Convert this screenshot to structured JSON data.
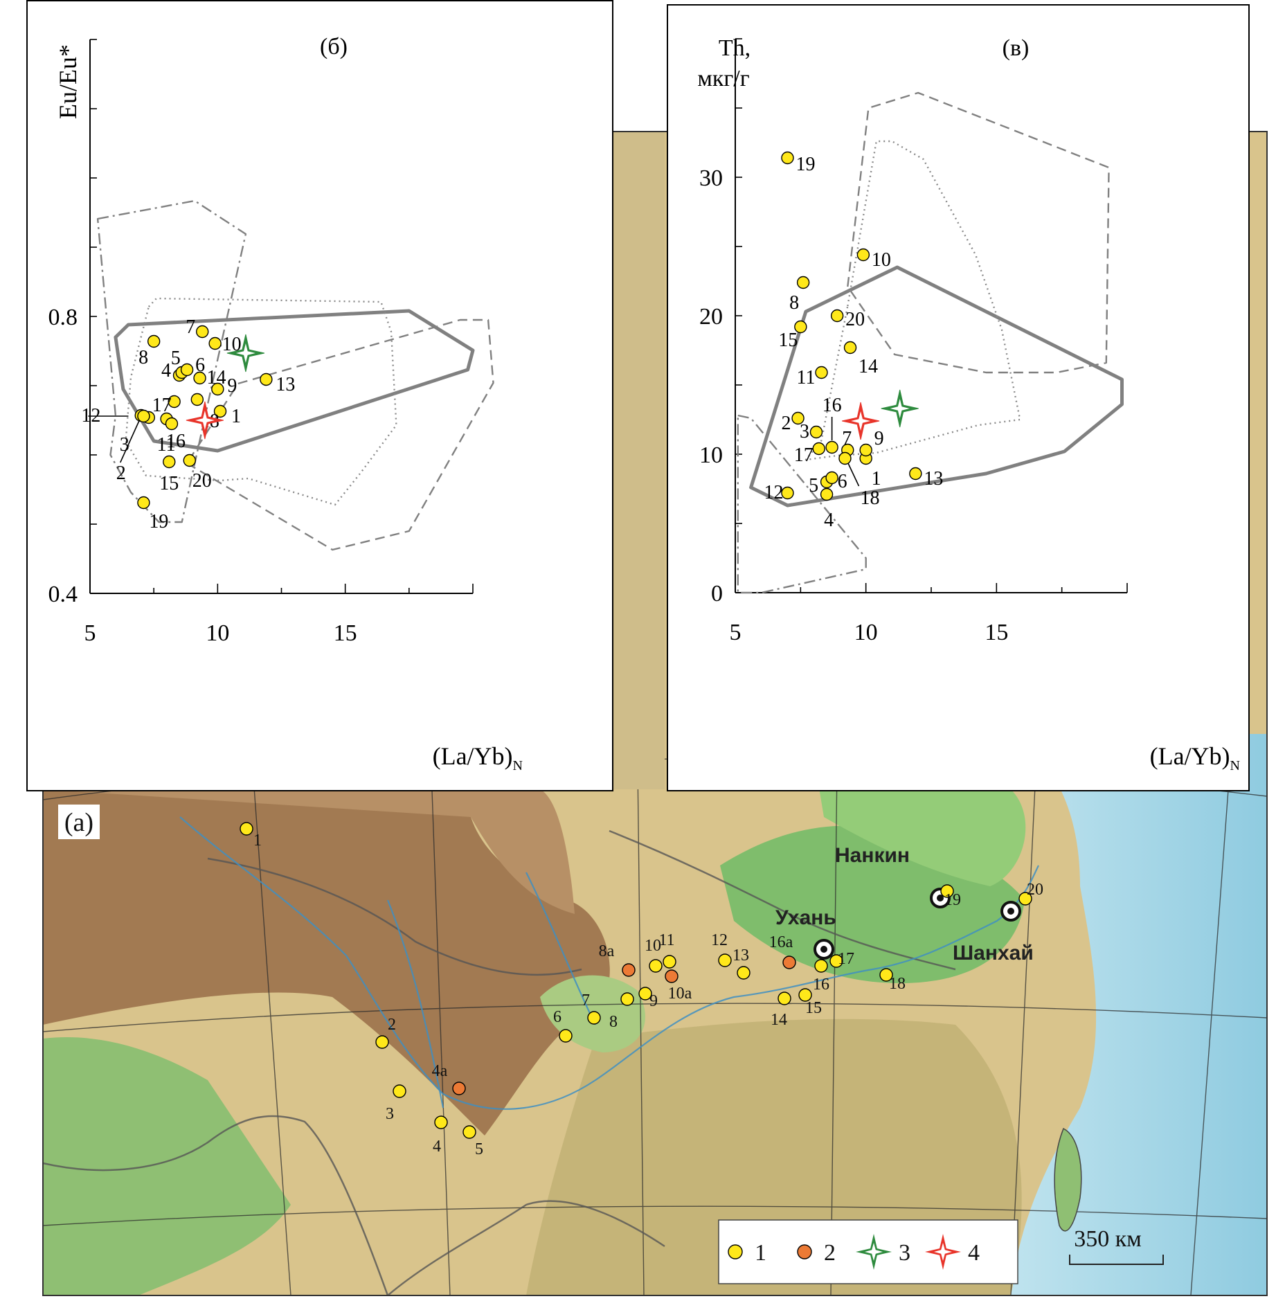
{
  "chart_data": [
    {
      "type": "scatter",
      "panel_label": "(б)",
      "xlabel": "(La/Yb)",
      "xlabel_sub": "N",
      "ylabel": "Eu/Eu*",
      "xlim": [
        5,
        20
      ],
      "ylim": [
        0.4,
        1.2
      ],
      "x_ticks": [
        "5",
        "10",
        "15"
      ],
      "y_ticks": [
        "0.4",
        "0.8"
      ],
      "points": [
        {
          "label": "1",
          "x": 10.1,
          "y": 0.663
        },
        {
          "label": "2",
          "x": 7.0,
          "y": 0.657
        },
        {
          "label": "3",
          "x": 7.3,
          "y": 0.654
        },
        {
          "label": "4",
          "x": 8.5,
          "y": 0.715
        },
        {
          "label": "5",
          "x": 8.6,
          "y": 0.719
        },
        {
          "label": "6",
          "x": 8.8,
          "y": 0.723
        },
        {
          "label": "7",
          "x": 9.4,
          "y": 0.778
        },
        {
          "label": "8",
          "x": 7.5,
          "y": 0.764
        },
        {
          "label": "9",
          "x": 10.0,
          "y": 0.695
        },
        {
          "label": "10",
          "x": 9.9,
          "y": 0.761
        },
        {
          "label": "11",
          "x": 8.0,
          "y": 0.652
        },
        {
          "label": "12",
          "x": 7.1,
          "y": 0.656
        },
        {
          "label": "13",
          "x": 11.9,
          "y": 0.709
        },
        {
          "label": "14",
          "x": 9.3,
          "y": 0.711
        },
        {
          "label": "15",
          "x": 8.1,
          "y": 0.59
        },
        {
          "label": "16",
          "x": 8.2,
          "y": 0.645
        },
        {
          "label": "17",
          "x": 8.3,
          "y": 0.677
        },
        {
          "label": "18",
          "x": 9.2,
          "y": 0.68
        },
        {
          "label": "19",
          "x": 7.1,
          "y": 0.531
        },
        {
          "label": "20",
          "x": 8.9,
          "y": 0.592
        }
      ],
      "markers": [
        {
          "legend": "3",
          "x": 11.1,
          "y": 0.747,
          "color": "#2e8b3e"
        },
        {
          "legend": "4",
          "x": 9.5,
          "y": 0.65,
          "color": "#e8342a"
        }
      ],
      "fields": [
        {
          "style": "solid",
          "vertices": [
            [
              6.0,
              0.77
            ],
            [
              6.5,
              0.788
            ],
            [
              17.5,
              0.808
            ],
            [
              20.0,
              0.751
            ],
            [
              19.8,
              0.723
            ],
            [
              10.0,
              0.606
            ],
            [
              7.5,
              0.62
            ],
            [
              6.3,
              0.695
            ]
          ]
        },
        {
          "style": "dash",
          "vertices": [
            [
              8.8,
              0.588
            ],
            [
              14.5,
              0.463
            ],
            [
              17.5,
              0.49
            ],
            [
              20.8,
              0.704
            ],
            [
              20.6,
              0.795
            ],
            [
              19.5,
              0.795
            ],
            [
              10.8,
              0.703
            ]
          ]
        },
        {
          "style": "dot",
          "vertices": [
            [
              7.3,
              0.814
            ],
            [
              7.6,
              0.826
            ],
            [
              16.4,
              0.821
            ],
            [
              16.8,
              0.778
            ],
            [
              17.0,
              0.643
            ],
            [
              15.6,
              0.574
            ],
            [
              14.6,
              0.528
            ],
            [
              11.2,
              0.566
            ],
            [
              10.1,
              0.563
            ],
            [
              7.2,
              0.57
            ],
            [
              6.4,
              0.62
            ],
            [
              6.6,
              0.712
            ]
          ]
        },
        {
          "style": "dashdot",
          "vertices": [
            [
              5.3,
              0.941
            ],
            [
              9.1,
              0.967
            ],
            [
              11.1,
              0.919
            ],
            [
              9.8,
              0.705
            ],
            [
              8.6,
              0.503
            ],
            [
              7.7,
              0.503
            ],
            [
              6.6,
              0.546
            ],
            [
              5.8,
              0.6
            ],
            [
              6.0,
              0.657
            ]
          ]
        }
      ]
    },
    {
      "type": "scatter",
      "panel_label": "(в)",
      "xlabel": "(La/Yb)",
      "xlabel_sub": "N",
      "ylabel": "Th,",
      "ylabel2": "мкг/г",
      "xlim": [
        5,
        20
      ],
      "ylim": [
        0,
        40
      ],
      "x_ticks": [
        "5",
        "10",
        "15"
      ],
      "y_ticks": [
        "0",
        "10",
        "20",
        "30"
      ],
      "points": [
        {
          "label": "1",
          "x": 10.0,
          "y": 9.7
        },
        {
          "label": "2",
          "x": 7.4,
          "y": 12.6
        },
        {
          "label": "3",
          "x": 8.1,
          "y": 11.6
        },
        {
          "label": "4",
          "x": 8.5,
          "y": 7.1
        },
        {
          "label": "5",
          "x": 8.5,
          "y": 8.0
        },
        {
          "label": "6",
          "x": 8.7,
          "y": 8.3
        },
        {
          "label": "7",
          "x": 9.3,
          "y": 10.3
        },
        {
          "label": "8",
          "x": 7.6,
          "y": 22.4
        },
        {
          "label": "9",
          "x": 10.0,
          "y": 10.3
        },
        {
          "label": "10",
          "x": 9.9,
          "y": 24.4
        },
        {
          "label": "11",
          "x": 8.3,
          "y": 15.9
        },
        {
          "label": "12",
          "x": 7.0,
          "y": 7.2
        },
        {
          "label": "13",
          "x": 11.9,
          "y": 8.6
        },
        {
          "label": "14",
          "x": 9.4,
          "y": 17.7
        },
        {
          "label": "15",
          "x": 7.5,
          "y": 19.2
        },
        {
          "label": "16",
          "x": 8.7,
          "y": 10.5
        },
        {
          "label": "17",
          "x": 8.2,
          "y": 10.4
        },
        {
          "label": "18",
          "x": 9.2,
          "y": 9.7
        },
        {
          "label": "19",
          "x": 7.0,
          "y": 31.4
        },
        {
          "label": "20",
          "x": 8.9,
          "y": 20.0
        }
      ],
      "markers": [
        {
          "legend": "3",
          "x": 11.3,
          "y": 13.3,
          "color": "#2e8b3e"
        },
        {
          "legend": "4",
          "x": 9.8,
          "y": 12.4,
          "color": "#e8342a"
        }
      ],
      "fields": [
        {
          "style": "solid",
          "vertices": [
            [
              7.7,
              20.3
            ],
            [
              11.2,
              23.5
            ],
            [
              19.8,
              15.4
            ],
            [
              19.8,
              13.6
            ],
            [
              17.6,
              10.2
            ],
            [
              14.6,
              8.6
            ],
            [
              7.0,
              6.3
            ],
            [
              5.6,
              7.6
            ]
          ]
        },
        {
          "style": "dash",
          "vertices": [
            [
              9.3,
              22.1
            ],
            [
              10.1,
              35.0
            ],
            [
              12.0,
              36.1
            ],
            [
              19.3,
              30.7
            ],
            [
              19.2,
              16.6
            ],
            [
              17.3,
              15.9
            ],
            [
              14.6,
              15.9
            ],
            [
              11.1,
              17.2
            ]
          ]
        },
        {
          "style": "dot",
          "vertices": [
            [
              9.3,
              20.7
            ],
            [
              10.4,
              32.6
            ],
            [
              11.0,
              32.6
            ],
            [
              12.2,
              31.3
            ],
            [
              14.2,
              24.4
            ],
            [
              15.2,
              19.0
            ],
            [
              15.9,
              12.5
            ],
            [
              14.3,
              12.1
            ],
            [
              10.4,
              10.1
            ],
            [
              8.9,
              9.9
            ],
            [
              7.7,
              9.6
            ],
            [
              8.3,
              11.0
            ]
          ]
        },
        {
          "style": "dashdot",
          "vertices": [
            [
              5.1,
              12.8
            ],
            [
              5.6,
              12.6
            ],
            [
              10.0,
              2.5
            ],
            [
              10.0,
              1.7
            ],
            [
              6.0,
              0.0
            ],
            [
              5.1,
              0.0
            ]
          ]
        }
      ]
    }
  ],
  "map": {
    "panel_label": "(a)",
    "cities": [
      {
        "name": "Нанкин"
      },
      {
        "name": "Ухань"
      },
      {
        "name": "Шанхай"
      }
    ],
    "sites": [
      {
        "label": "1",
        "type": 1
      },
      {
        "label": "2",
        "type": 1
      },
      {
        "label": "3",
        "type": 1
      },
      {
        "label": "4",
        "type": 1
      },
      {
        "label": "4a",
        "type": 2
      },
      {
        "label": "5",
        "type": 1
      },
      {
        "label": "6",
        "type": 1
      },
      {
        "label": "7",
        "type": 1
      },
      {
        "label": "8",
        "type": 1
      },
      {
        "label": "8a",
        "type": 2
      },
      {
        "label": "9",
        "type": 1
      },
      {
        "label": "10",
        "type": 1
      },
      {
        "label": "10a",
        "type": 2
      },
      {
        "label": "11",
        "type": 1
      },
      {
        "label": "12",
        "type": 1
      },
      {
        "label": "13",
        "type": 1
      },
      {
        "label": "14",
        "type": 1
      },
      {
        "label": "15",
        "type": 1
      },
      {
        "label": "16",
        "type": 1
      },
      {
        "label": "16a",
        "type": 2
      },
      {
        "label": "17",
        "type": 1
      },
      {
        "label": "18",
        "type": 1
      },
      {
        "label": "19",
        "type": 1
      },
      {
        "label": "20",
        "type": 1
      }
    ],
    "scale_label": "350 км",
    "legend": [
      {
        "label": "1",
        "symbol": "circle",
        "color": "#ffe81a"
      },
      {
        "label": "2",
        "symbol": "circle",
        "color": "#ec7a35"
      },
      {
        "label": "3",
        "symbol": "star",
        "color": "#2e8b3e"
      },
      {
        "label": "4",
        "symbol": "star",
        "color": "#e8342a"
      }
    ]
  }
}
